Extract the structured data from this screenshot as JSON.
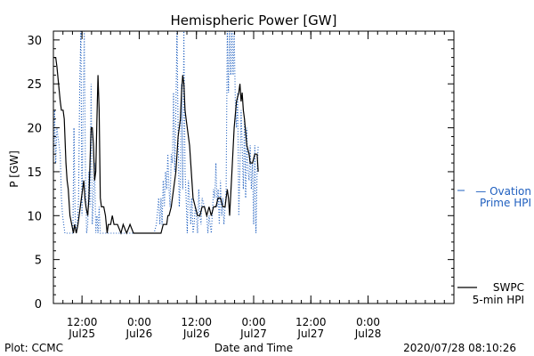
{
  "chart_data": {
    "type": "line",
    "title": "Hemispheric Power [GW]",
    "xlabel": "Date and Time",
    "ylabel": "P [GW]",
    "ylim": [
      0,
      31
    ],
    "xlim": [
      0,
      3.5
    ],
    "grid": false,
    "y_ticks": [
      0,
      5,
      10,
      15,
      20,
      25,
      30
    ],
    "x_ticks": [
      {
        "x": 0.25,
        "time": "12:00",
        "date": "Jul25"
      },
      {
        "x": 0.75,
        "time": "0:00",
        "date": "Jul26"
      },
      {
        "x": 1.25,
        "time": "12:00",
        "date": "Jul26"
      },
      {
        "x": 1.75,
        "time": "0:00",
        "date": "Jul27"
      },
      {
        "x": 2.25,
        "time": "12:00",
        "date": "Jul27"
      },
      {
        "x": 2.75,
        "time": "0:00",
        "date": "Jul28"
      }
    ],
    "legend": [
      {
        "label": "SWPC",
        "label2": "5-min HPI",
        "style": "solid",
        "color": "#000000"
      },
      {
        "label": "— Ovation",
        "label2": "Prime HPI",
        "style": "dotted",
        "color": "#1f5fbf"
      }
    ],
    "series": [
      {
        "name": "SWPC 5-min HPI",
        "color": "#000000",
        "style": "solid",
        "points": [
          [
            0.0,
            28
          ],
          [
            0.02,
            28
          ],
          [
            0.03,
            27
          ],
          [
            0.045,
            25
          ],
          [
            0.06,
            23
          ],
          [
            0.07,
            22
          ],
          [
            0.085,
            22
          ],
          [
            0.095,
            21
          ],
          [
            0.11,
            16
          ],
          [
            0.12,
            14
          ],
          [
            0.13,
            13
          ],
          [
            0.145,
            10
          ],
          [
            0.16,
            9
          ],
          [
            0.175,
            8
          ],
          [
            0.185,
            9
          ],
          [
            0.2,
            8
          ],
          [
            0.215,
            9
          ],
          [
            0.225,
            10
          ],
          [
            0.235,
            11
          ],
          [
            0.245,
            12
          ],
          [
            0.255,
            13
          ],
          [
            0.265,
            14
          ],
          [
            0.275,
            12
          ],
          [
            0.285,
            11
          ],
          [
            0.3,
            10
          ],
          [
            0.31,
            12
          ],
          [
            0.32,
            16
          ],
          [
            0.33,
            20
          ],
          [
            0.34,
            20
          ],
          [
            0.35,
            18
          ],
          [
            0.36,
            14
          ],
          [
            0.37,
            15
          ],
          [
            0.38,
            21
          ],
          [
            0.39,
            26
          ],
          [
            0.4,
            22
          ],
          [
            0.41,
            12
          ],
          [
            0.42,
            11
          ],
          [
            0.44,
            11
          ],
          [
            0.455,
            10
          ],
          [
            0.47,
            8
          ],
          [
            0.48,
            9
          ],
          [
            0.5,
            9
          ],
          [
            0.515,
            10
          ],
          [
            0.53,
            9
          ],
          [
            0.56,
            9
          ],
          [
            0.59,
            8
          ],
          [
            0.61,
            9
          ],
          [
            0.64,
            8
          ],
          [
            0.67,
            9
          ],
          [
            0.7,
            8
          ],
          [
            0.74,
            8
          ],
          [
            0.78,
            8
          ],
          [
            0.82,
            8
          ],
          [
            0.86,
            8
          ],
          [
            0.9,
            8
          ],
          [
            0.94,
            8
          ],
          [
            0.96,
            9
          ],
          [
            0.99,
            9
          ],
          [
            1.0,
            10
          ],
          [
            1.01,
            10
          ],
          [
            1.03,
            11
          ],
          [
            1.04,
            12
          ],
          [
            1.05,
            13
          ],
          [
            1.06,
            14
          ],
          [
            1.07,
            15
          ],
          [
            1.08,
            17
          ],
          [
            1.09,
            19
          ],
          [
            1.11,
            21
          ],
          [
            1.12,
            24
          ],
          [
            1.13,
            26
          ],
          [
            1.14,
            25
          ],
          [
            1.15,
            22
          ],
          [
            1.16,
            21
          ],
          [
            1.17,
            20
          ],
          [
            1.18,
            19
          ],
          [
            1.19,
            18
          ],
          [
            1.2,
            16
          ],
          [
            1.22,
            12
          ],
          [
            1.24,
            11
          ],
          [
            1.26,
            10
          ],
          [
            1.28,
            10
          ],
          [
            1.3,
            11
          ],
          [
            1.32,
            11
          ],
          [
            1.34,
            10
          ],
          [
            1.36,
            11
          ],
          [
            1.38,
            10
          ],
          [
            1.4,
            11
          ],
          [
            1.42,
            11
          ],
          [
            1.44,
            12
          ],
          [
            1.46,
            12
          ],
          [
            1.48,
            11
          ],
          [
            1.5,
            11
          ],
          [
            1.51,
            12
          ],
          [
            1.52,
            13
          ],
          [
            1.53,
            12
          ],
          [
            1.54,
            10
          ],
          [
            1.56,
            15
          ],
          [
            1.58,
            20
          ],
          [
            1.6,
            23
          ],
          [
            1.62,
            24
          ],
          [
            1.63,
            25
          ],
          [
            1.64,
            23
          ],
          [
            1.65,
            24
          ],
          [
            1.66,
            22
          ],
          [
            1.67,
            21
          ],
          [
            1.69,
            18
          ],
          [
            1.71,
            17
          ],
          [
            1.72,
            16
          ],
          [
            1.74,
            16
          ],
          [
            1.76,
            17
          ],
          [
            1.78,
            17
          ],
          [
            1.79,
            15
          ]
        ]
      },
      {
        "name": "Ovation Prime HPI",
        "color": "#1f5fbf",
        "style": "dotted",
        "points": [
          [
            0.0,
            16
          ],
          [
            0.01,
            22
          ],
          [
            0.02,
            16
          ],
          [
            0.03,
            20
          ],
          [
            0.04,
            19
          ],
          [
            0.05,
            18
          ],
          [
            0.06,
            17
          ],
          [
            0.07,
            12
          ],
          [
            0.08,
            10
          ],
          [
            0.09,
            9
          ],
          [
            0.1,
            8
          ],
          [
            0.11,
            8
          ],
          [
            0.13,
            8
          ],
          [
            0.15,
            8
          ],
          [
            0.17,
            8
          ],
          [
            0.18,
            20
          ],
          [
            0.19,
            10
          ],
          [
            0.2,
            8
          ],
          [
            0.21,
            9
          ],
          [
            0.22,
            12
          ],
          [
            0.23,
            25
          ],
          [
            0.24,
            31
          ],
          [
            0.25,
            10
          ],
          [
            0.26,
            22
          ],
          [
            0.27,
            31
          ],
          [
            0.28,
            15
          ],
          [
            0.29,
            8
          ],
          [
            0.3,
            9
          ],
          [
            0.31,
            15
          ],
          [
            0.32,
            11
          ],
          [
            0.33,
            25
          ],
          [
            0.34,
            9
          ],
          [
            0.35,
            12
          ],
          [
            0.36,
            16
          ],
          [
            0.37,
            8
          ],
          [
            0.38,
            10
          ],
          [
            0.39,
            8
          ],
          [
            0.4,
            11
          ],
          [
            0.41,
            8
          ],
          [
            0.42,
            8
          ],
          [
            0.44,
            8
          ],
          [
            0.48,
            8
          ],
          [
            0.52,
            8
          ],
          [
            0.56,
            8
          ],
          [
            0.6,
            8
          ],
          [
            0.64,
            8
          ],
          [
            0.68,
            8
          ],
          [
            0.72,
            8
          ],
          [
            0.76,
            8
          ],
          [
            0.8,
            8
          ],
          [
            0.84,
            8
          ],
          [
            0.88,
            8
          ],
          [
            0.9,
            9
          ],
          [
            0.92,
            12
          ],
          [
            0.93,
            9
          ],
          [
            0.94,
            12
          ],
          [
            0.95,
            9
          ],
          [
            0.96,
            14
          ],
          [
            0.97,
            11
          ],
          [
            0.98,
            15
          ],
          [
            0.99,
            13
          ],
          [
            1.0,
            17
          ],
          [
            1.01,
            13
          ],
          [
            1.02,
            11
          ],
          [
            1.03,
            17
          ],
          [
            1.04,
            16
          ],
          [
            1.05,
            24
          ],
          [
            1.06,
            15
          ],
          [
            1.07,
            22
          ],
          [
            1.08,
            31
          ],
          [
            1.09,
            20
          ],
          [
            1.1,
            11
          ],
          [
            1.11,
            14
          ],
          [
            1.12,
            25
          ],
          [
            1.13,
            13
          ],
          [
            1.14,
            31
          ],
          [
            1.15,
            15
          ],
          [
            1.16,
            12
          ],
          [
            1.17,
            8
          ],
          [
            1.18,
            14
          ],
          [
            1.19,
            12
          ],
          [
            1.2,
            9
          ],
          [
            1.21,
            12
          ],
          [
            1.22,
            8
          ],
          [
            1.23,
            9
          ],
          [
            1.24,
            11
          ],
          [
            1.25,
            10
          ],
          [
            1.26,
            8
          ],
          [
            1.27,
            13
          ],
          [
            1.28,
            10
          ],
          [
            1.29,
            9
          ],
          [
            1.3,
            12
          ],
          [
            1.32,
            11
          ],
          [
            1.34,
            10
          ],
          [
            1.35,
            8
          ],
          [
            1.36,
            10
          ],
          [
            1.37,
            9
          ],
          [
            1.38,
            8
          ],
          [
            1.4,
            13
          ],
          [
            1.41,
            12
          ],
          [
            1.42,
            16
          ],
          [
            1.43,
            11
          ],
          [
            1.44,
            13
          ],
          [
            1.45,
            9
          ],
          [
            1.46,
            14
          ],
          [
            1.47,
            10
          ],
          [
            1.48,
            12
          ],
          [
            1.49,
            9
          ],
          [
            1.5,
            11
          ],
          [
            1.51,
            13
          ],
          [
            1.52,
            31
          ],
          [
            1.53,
            24
          ],
          [
            1.54,
            31
          ],
          [
            1.55,
            26
          ],
          [
            1.56,
            31
          ],
          [
            1.57,
            26
          ],
          [
            1.58,
            31
          ],
          [
            1.59,
            23
          ],
          [
            1.6,
            20
          ],
          [
            1.61,
            24
          ],
          [
            1.62,
            10
          ],
          [
            1.63,
            15
          ],
          [
            1.64,
            22
          ],
          [
            1.65,
            18
          ],
          [
            1.66,
            13
          ],
          [
            1.67,
            21
          ],
          [
            1.68,
            12
          ],
          [
            1.69,
            20
          ],
          [
            1.7,
            15
          ],
          [
            1.71,
            14
          ],
          [
            1.72,
            18
          ],
          [
            1.73,
            13
          ],
          [
            1.74,
            16
          ],
          [
            1.75,
            9
          ],
          [
            1.76,
            18
          ],
          [
            1.77,
            8
          ],
          [
            1.78,
            15
          ],
          [
            1.79,
            18
          ]
        ]
      }
    ]
  },
  "footer": {
    "left": "Plot: CCMC",
    "right": "2020/07/28 08:10:26"
  }
}
